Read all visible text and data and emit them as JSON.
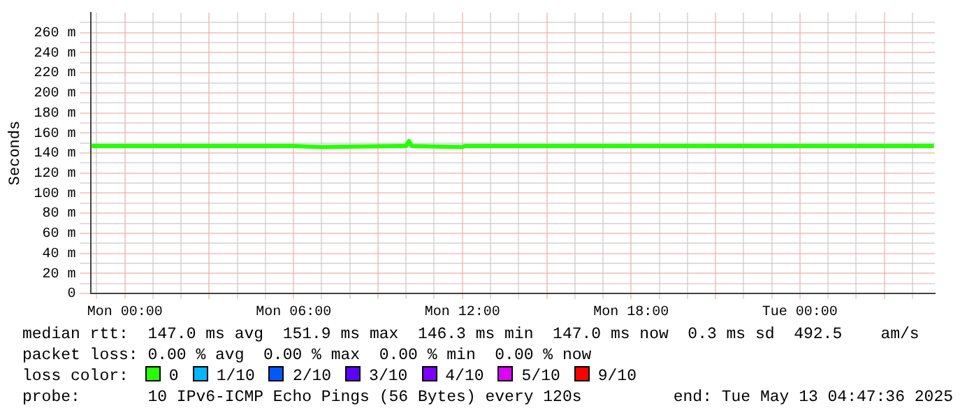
{
  "chart_data": {
    "type": "line",
    "ylabel": "Seconds",
    "x": [
      "2025-05-11T22:48",
      "2025-05-12T06:00",
      "2025-05-12T07:00",
      "2025-05-12T09:50",
      "2025-05-12T10:00",
      "2025-05-12T10:06",
      "2025-05-12T10:12",
      "2025-05-12T12:00",
      "2025-05-12T12:06",
      "2025-05-12T18:00",
      "2025-05-13T04:46"
    ],
    "series": [
      {
        "name": "0",
        "color": "#26ff00",
        "values": [
          147,
          147,
          146,
          147,
          147,
          152,
          147,
          146,
          147,
          147,
          147
        ]
      },
      {
        "name": "1/10",
        "color": "#00b8ff",
        "values": [
          null,
          null,
          null,
          null,
          null,
          null,
          null,
          null,
          null,
          null,
          null
        ]
      },
      {
        "name": "2/10",
        "color": "#0059ff",
        "values": [
          null,
          null,
          null,
          null,
          null,
          null,
          null,
          null,
          null,
          null,
          null
        ]
      },
      {
        "name": "3/10",
        "color": "#5e00ff",
        "values": [
          null,
          null,
          null,
          null,
          null,
          null,
          null,
          null,
          null,
          null,
          null
        ]
      },
      {
        "name": "4/10",
        "color": "#7e00ff",
        "values": [
          null,
          null,
          null,
          null,
          null,
          null,
          null,
          null,
          null,
          null,
          null
        ]
      },
      {
        "name": "5/10",
        "color": "#dd00ff",
        "values": [
          null,
          null,
          null,
          null,
          null,
          null,
          null,
          null,
          null,
          null,
          null
        ]
      },
      {
        "name": "9/10",
        "color": "#ff0000",
        "values": [
          null,
          null,
          null,
          null,
          null,
          null,
          null,
          null,
          null,
          null,
          null
        ]
      }
    ],
    "xlim": [
      "2025-05-11T22:48",
      "2025-05-13T04:48"
    ],
    "xticks": [
      {
        "value": "2025-05-11T23:00",
        "label": null
      },
      {
        "value": "2025-05-12T00:00",
        "label": "Mon 00:00"
      },
      {
        "value": "2025-05-12T01:00",
        "label": null
      },
      {
        "value": "2025-05-12T02:00",
        "label": null
      },
      {
        "value": "2025-05-12T03:00",
        "label": null
      },
      {
        "value": "2025-05-12T04:00",
        "label": null
      },
      {
        "value": "2025-05-12T05:00",
        "label": null
      },
      {
        "value": "2025-05-12T06:00",
        "label": "Mon 06:00"
      },
      {
        "value": "2025-05-12T07:00",
        "label": null
      },
      {
        "value": "2025-05-12T08:00",
        "label": null
      },
      {
        "value": "2025-05-12T09:00",
        "label": null
      },
      {
        "value": "2025-05-12T10:00",
        "label": null
      },
      {
        "value": "2025-05-12T11:00",
        "label": null
      },
      {
        "value": "2025-05-12T12:00",
        "label": "Mon 12:00"
      },
      {
        "value": "2025-05-12T13:00",
        "label": null
      },
      {
        "value": "2025-05-12T14:00",
        "label": null
      },
      {
        "value": "2025-05-12T15:00",
        "label": null
      },
      {
        "value": "2025-05-12T16:00",
        "label": null
      },
      {
        "value": "2025-05-12T17:00",
        "label": null
      },
      {
        "value": "2025-05-12T18:00",
        "label": "Mon 18:00"
      },
      {
        "value": "2025-05-12T19:00",
        "label": null
      },
      {
        "value": "2025-05-12T20:00",
        "label": null
      },
      {
        "value": "2025-05-12T21:00",
        "label": null
      },
      {
        "value": "2025-05-12T22:00",
        "label": null
      },
      {
        "value": "2025-05-12T23:00",
        "label": null
      },
      {
        "value": "2025-05-13T00:00",
        "label": "Tue 00:00"
      },
      {
        "value": "2025-05-13T01:00",
        "label": null
      },
      {
        "value": "2025-05-13T02:00",
        "label": null
      },
      {
        "value": "2025-05-13T03:00",
        "label": null
      },
      {
        "value": "2025-05-13T04:00",
        "label": null
      }
    ],
    "ylim": [
      0,
      280
    ],
    "yticks": [
      0,
      {
        "value": 10,
        "label": null
      },
      {
        "value": 20,
        "label": "20 m"
      },
      {
        "value": 30,
        "label": null
      },
      {
        "value": 40,
        "label": "40 m"
      },
      {
        "value": 50,
        "label": null
      },
      {
        "value": 60,
        "label": "60 m"
      },
      {
        "value": 70,
        "label": null
      },
      {
        "value": 80,
        "label": "80 m"
      },
      {
        "value": 90,
        "label": null
      },
      {
        "value": 100,
        "label": "100 m"
      },
      {
        "value": 110,
        "label": null
      },
      {
        "value": 120,
        "label": "120 m"
      },
      {
        "value": 130,
        "label": null
      },
      {
        "value": 140,
        "label": "140 m"
      },
      {
        "value": 150,
        "label": null
      },
      {
        "value": 160,
        "label": "160 m"
      },
      {
        "value": 170,
        "label": null
      },
      {
        "value": 180,
        "label": "180 m"
      },
      {
        "value": 190,
        "label": null
      },
      {
        "value": 200,
        "label": "200 m"
      },
      {
        "value": 210,
        "label": null
      },
      {
        "value": 220,
        "label": "220 m"
      },
      {
        "value": 230,
        "label": null
      },
      {
        "value": 240,
        "label": "240 m"
      },
      {
        "value": 250,
        "label": null
      },
      {
        "value": 260,
        "label": "260 m"
      },
      {
        "value": 270,
        "label": null
      }
    ],
    "grid": true,
    "legend": "bottom",
    "marker": "none",
    "line_style": "solid",
    "annotations": [
      "median rtt:  147.0 ms avg  151.9 ms max  146.3 ms min  147.0 ms now  0.3 ms sd  492.5    am/s",
      "packet loss: 0.00 % avg  0.00 % max  0.00 % min  0.00 % now",
      "loss color:",
      "probe:       10 IPv6-ICMP Echo Pings (56 Bytes) every 120s",
      "end: Tue May 13 04:47:36 2025"
    ]
  }
}
